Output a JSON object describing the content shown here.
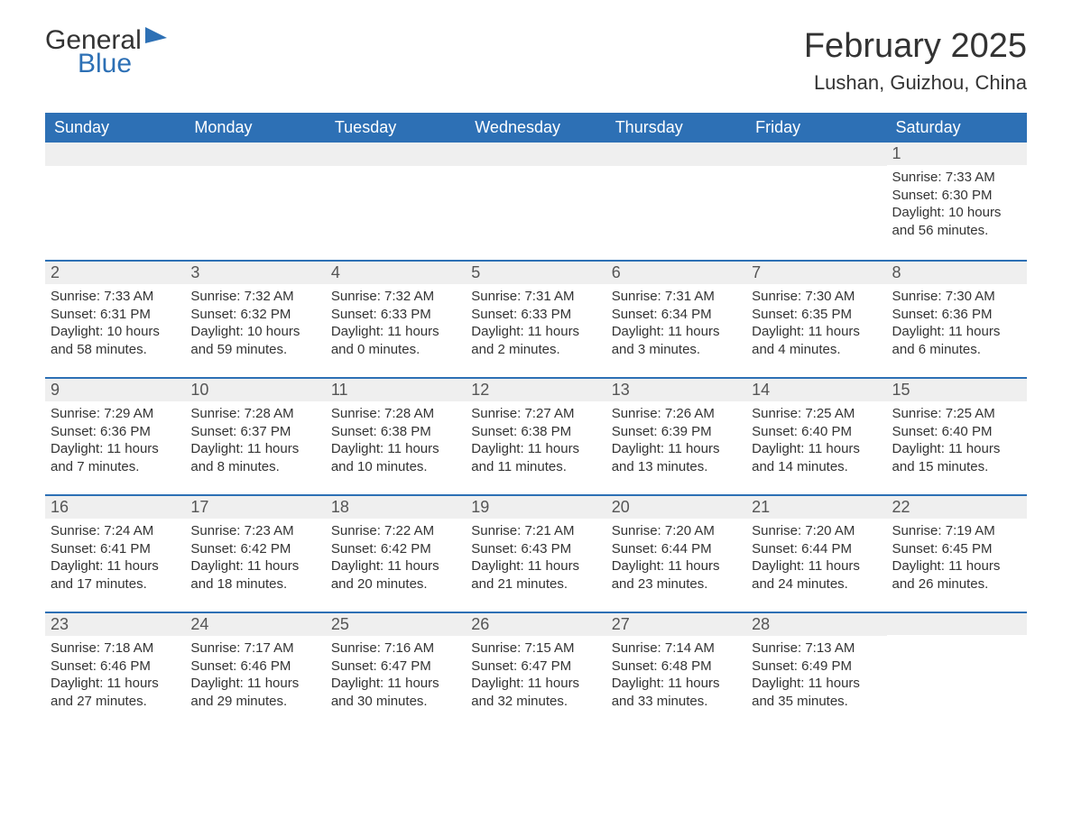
{
  "brand": {
    "text_general": "General",
    "text_blue": "Blue",
    "accent_color": "#2d70b5"
  },
  "title": "February 2025",
  "location": "Lushan, Guizhou, China",
  "layout": {
    "type": "calendar-month",
    "columns": 7,
    "rows": 5,
    "first_day_column_index": 6,
    "days_in_month": 28,
    "header_bg": "#2d70b5",
    "header_fg": "#ffffff",
    "daynum_bg": "#efefef",
    "row_border_color": "#2d70b5",
    "body_bg": "#ffffff",
    "text_color": "#333333",
    "header_fontsize": 18,
    "title_fontsize": 38,
    "location_fontsize": 22,
    "daynum_fontsize": 18,
    "cell_fontsize": 15
  },
  "weekdays": [
    "Sunday",
    "Monday",
    "Tuesday",
    "Wednesday",
    "Thursday",
    "Friday",
    "Saturday"
  ],
  "days": [
    {
      "n": 1,
      "sunrise": "7:33 AM",
      "sunset": "6:30 PM",
      "daylight": "10 hours and 56 minutes."
    },
    {
      "n": 2,
      "sunrise": "7:33 AM",
      "sunset": "6:31 PM",
      "daylight": "10 hours and 58 minutes."
    },
    {
      "n": 3,
      "sunrise": "7:32 AM",
      "sunset": "6:32 PM",
      "daylight": "10 hours and 59 minutes."
    },
    {
      "n": 4,
      "sunrise": "7:32 AM",
      "sunset": "6:33 PM",
      "daylight": "11 hours and 0 minutes."
    },
    {
      "n": 5,
      "sunrise": "7:31 AM",
      "sunset": "6:33 PM",
      "daylight": "11 hours and 2 minutes."
    },
    {
      "n": 6,
      "sunrise": "7:31 AM",
      "sunset": "6:34 PM",
      "daylight": "11 hours and 3 minutes."
    },
    {
      "n": 7,
      "sunrise": "7:30 AM",
      "sunset": "6:35 PM",
      "daylight": "11 hours and 4 minutes."
    },
    {
      "n": 8,
      "sunrise": "7:30 AM",
      "sunset": "6:36 PM",
      "daylight": "11 hours and 6 minutes."
    },
    {
      "n": 9,
      "sunrise": "7:29 AM",
      "sunset": "6:36 PM",
      "daylight": "11 hours and 7 minutes."
    },
    {
      "n": 10,
      "sunrise": "7:28 AM",
      "sunset": "6:37 PM",
      "daylight": "11 hours and 8 minutes."
    },
    {
      "n": 11,
      "sunrise": "7:28 AM",
      "sunset": "6:38 PM",
      "daylight": "11 hours and 10 minutes."
    },
    {
      "n": 12,
      "sunrise": "7:27 AM",
      "sunset": "6:38 PM",
      "daylight": "11 hours and 11 minutes."
    },
    {
      "n": 13,
      "sunrise": "7:26 AM",
      "sunset": "6:39 PM",
      "daylight": "11 hours and 13 minutes."
    },
    {
      "n": 14,
      "sunrise": "7:25 AM",
      "sunset": "6:40 PM",
      "daylight": "11 hours and 14 minutes."
    },
    {
      "n": 15,
      "sunrise": "7:25 AM",
      "sunset": "6:40 PM",
      "daylight": "11 hours and 15 minutes."
    },
    {
      "n": 16,
      "sunrise": "7:24 AM",
      "sunset": "6:41 PM",
      "daylight": "11 hours and 17 minutes."
    },
    {
      "n": 17,
      "sunrise": "7:23 AM",
      "sunset": "6:42 PM",
      "daylight": "11 hours and 18 minutes."
    },
    {
      "n": 18,
      "sunrise": "7:22 AM",
      "sunset": "6:42 PM",
      "daylight": "11 hours and 20 minutes."
    },
    {
      "n": 19,
      "sunrise": "7:21 AM",
      "sunset": "6:43 PM",
      "daylight": "11 hours and 21 minutes."
    },
    {
      "n": 20,
      "sunrise": "7:20 AM",
      "sunset": "6:44 PM",
      "daylight": "11 hours and 23 minutes."
    },
    {
      "n": 21,
      "sunrise": "7:20 AM",
      "sunset": "6:44 PM",
      "daylight": "11 hours and 24 minutes."
    },
    {
      "n": 22,
      "sunrise": "7:19 AM",
      "sunset": "6:45 PM",
      "daylight": "11 hours and 26 minutes."
    },
    {
      "n": 23,
      "sunrise": "7:18 AM",
      "sunset": "6:46 PM",
      "daylight": "11 hours and 27 minutes."
    },
    {
      "n": 24,
      "sunrise": "7:17 AM",
      "sunset": "6:46 PM",
      "daylight": "11 hours and 29 minutes."
    },
    {
      "n": 25,
      "sunrise": "7:16 AM",
      "sunset": "6:47 PM",
      "daylight": "11 hours and 30 minutes."
    },
    {
      "n": 26,
      "sunrise": "7:15 AM",
      "sunset": "6:47 PM",
      "daylight": "11 hours and 32 minutes."
    },
    {
      "n": 27,
      "sunrise": "7:14 AM",
      "sunset": "6:48 PM",
      "daylight": "11 hours and 33 minutes."
    },
    {
      "n": 28,
      "sunrise": "7:13 AM",
      "sunset": "6:49 PM",
      "daylight": "11 hours and 35 minutes."
    }
  ],
  "labels": {
    "sunrise": "Sunrise",
    "sunset": "Sunset",
    "daylight": "Daylight"
  }
}
